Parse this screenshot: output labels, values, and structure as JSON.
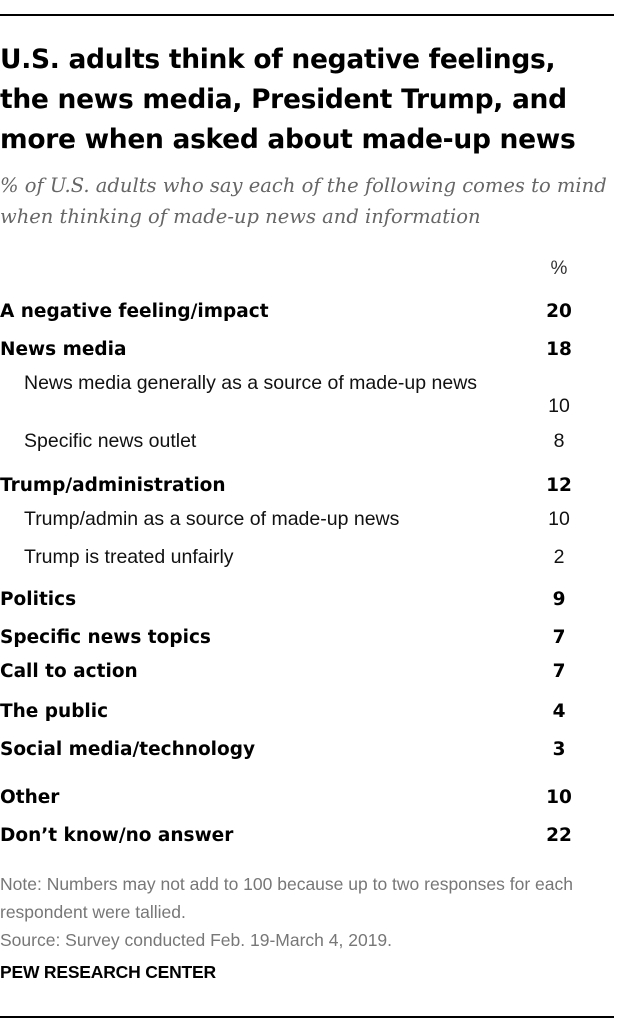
{
  "title": "U.S. adults think of negative feelings, the news media, President Trump, and more when asked about made-up news",
  "subtitle": "% of U.S. adults who say each of the following comes to mind when thinking of made-up news and information",
  "chart_data": {
    "type": "table",
    "column_header": "%",
    "rows": [
      {
        "label": "A negative feeling/impact",
        "value": 20,
        "level": 0
      },
      {
        "label": "News media",
        "value": 18,
        "level": 0
      },
      {
        "label": "News media generally as a source of made-up news",
        "value": 10,
        "level": 1
      },
      {
        "label": "Specific news outlet",
        "value": 8,
        "level": 1
      },
      {
        "label": "Trump/administration",
        "value": 12,
        "level": 0
      },
      {
        "label": "Trump/admin as a source of made-up news",
        "value": 10,
        "level": 1
      },
      {
        "label": "Trump is treated unfairly",
        "value": 2,
        "level": 1
      },
      {
        "label": "Politics",
        "value": 9,
        "level": 0
      },
      {
        "label": "Specific news topics",
        "value": 7,
        "level": 0
      },
      {
        "label": "Call to action",
        "value": 7,
        "level": 0
      },
      {
        "label": "The public",
        "value": 4,
        "level": 0
      },
      {
        "label": "Social media/technology",
        "value": 3,
        "level": 0
      },
      {
        "label": "Other",
        "value": 10,
        "level": 0
      },
      {
        "label": "Don’t know/no answer",
        "value": 22,
        "level": 0
      }
    ]
  },
  "note": "Note: Numbers may not add to 100 because up to two responses for each respondent were tallied.",
  "source": "Source: Survey conducted Feb. 19-March 4, 2019.",
  "brand": "PEW RESEARCH CENTER"
}
